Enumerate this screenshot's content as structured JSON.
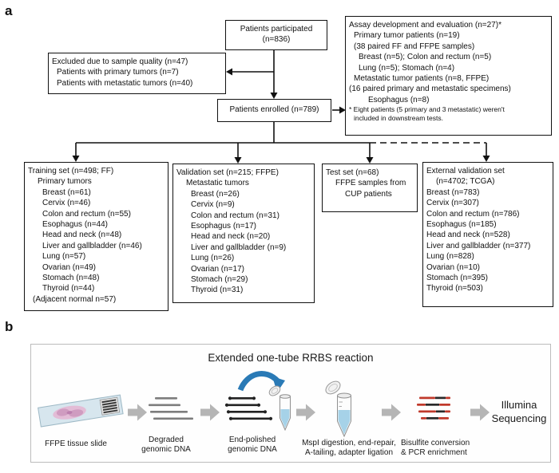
{
  "panel_a": {
    "label": "a",
    "participated": {
      "lines": [
        {
          "t": "Patients participated",
          "i": 0
        },
        {
          "t": "(n=836)",
          "i": 0
        }
      ]
    },
    "excluded": {
      "lines": [
        {
          "t": "Excluded due to sample quality (n=47)",
          "i": 0
        },
        {
          "t": "Patients with primary tumors (n=7)",
          "i": 1
        },
        {
          "t": "Patients with metastatic tumors  (n=40)",
          "i": 1
        }
      ]
    },
    "assay": {
      "lines": [
        {
          "t": "Assay development and evaluation (n=27)*",
          "i": 0
        },
        {
          "t": "Primary tumor patients (n=19)",
          "i": 1
        },
        {
          "t": "(38 paired FF and FFPE samples)",
          "i": 1
        },
        {
          "t": "Breast (n=5); Colon and rectum (n=5)",
          "i": 2
        },
        {
          "t": "Lung (n=5); Stomach (n=4)",
          "i": 2
        },
        {
          "t": "Metastatic tumor patients  (n=8, FFPE)",
          "i": 1
        },
        {
          "t": "(16 paired primary and metastatic specimens)",
          "i": 0
        },
        {
          "t": "Esophagus (n=8)",
          "i": 4
        },
        {
          "t": "* Eight patients (5 primary and 3 metastatic) weren't",
          "i": 0,
          "s": true
        },
        {
          "t": "included in downstream tests.",
          "i": 1,
          "s": true
        }
      ]
    },
    "enrolled": {
      "lines": [
        {
          "t": "Patients enrolled (n=789)",
          "i": 0
        }
      ]
    },
    "training": {
      "lines": [
        {
          "t": "Training set (n=498; FF)",
          "i": 0
        },
        {
          "t": "Primary tumors",
          "i": 2
        },
        {
          "t": "Breast (n=61)",
          "i": 3
        },
        {
          "t": "Cervix (n=46)",
          "i": 3
        },
        {
          "t": "Colon and rectum (n=55)",
          "i": 3
        },
        {
          "t": "Esophagus (n=44)",
          "i": 3
        },
        {
          "t": "Head and neck (n=48)",
          "i": 3
        },
        {
          "t": "Liver and gallbladder (n=46)",
          "i": 3
        },
        {
          "t": "Lung (n=57)",
          "i": 3
        },
        {
          "t": "Ovarian (n=49)",
          "i": 3
        },
        {
          "t": "Stomach (n=48)",
          "i": 3
        },
        {
          "t": "Thyroid (n=44)",
          "i": 3
        },
        {
          "t": "(Adjacent normal n=57)",
          "i": 1
        }
      ]
    },
    "validation": {
      "lines": [
        {
          "t": "Validation set (n=215; FFPE)",
          "i": 0
        },
        {
          "t": "Metastatic tumors",
          "i": 2
        },
        {
          "t": "Breast (n=26)",
          "i": 3
        },
        {
          "t": "Cervix (n=9)",
          "i": 3
        },
        {
          "t": "Colon and rectum (n=31)",
          "i": 3
        },
        {
          "t": "Esophagus (n=17)",
          "i": 3
        },
        {
          "t": "Head and neck (n=20)",
          "i": 3
        },
        {
          "t": "Liver and gallbladder (n=9)",
          "i": 3
        },
        {
          "t": "Lung (n=26)",
          "i": 3
        },
        {
          "t": "Ovarian (n=17)",
          "i": 3
        },
        {
          "t": "Stomach (n=29)",
          "i": 3
        },
        {
          "t": "Thyroid (n=31)",
          "i": 3
        }
      ]
    },
    "test": {
      "lines": [
        {
          "t": "Test set (n=68)",
          "i": 0
        },
        {
          "t": "FFPE samples from",
          "i": 2
        },
        {
          "t": "CUP patients",
          "i": 4
        }
      ]
    },
    "external": {
      "lines": [
        {
          "t": "External validation set",
          "i": 0
        },
        {
          "t": "(n=4702; TCGA)",
          "i": 2
        },
        {
          "t": "Breast (n=783)",
          "i": 0
        },
        {
          "t": "Cervix  (n=307)",
          "i": 0
        },
        {
          "t": "Colon and rectum  (n=786)",
          "i": 0
        },
        {
          "t": "Esophagus  (n=185)",
          "i": 0
        },
        {
          "t": "Head and neck  (n=528)",
          "i": 0
        },
        {
          "t": "Liver and gallbladder  (n=377)",
          "i": 0
        },
        {
          "t": "Lung  (n=828)",
          "i": 0
        },
        {
          "t": "Ovarian (n=10)",
          "i": 0
        },
        {
          "t": "Stomach (n=395)",
          "i": 0
        },
        {
          "t": "Thyroid  (n=503)",
          "i": 0
        }
      ]
    }
  },
  "panel_b": {
    "label": "b",
    "title": "Extended one-tube RRBS reaction",
    "step_labels": {
      "ffpe": {
        "lines": [
          {
            "t": "FFPE tissue slide"
          }
        ]
      },
      "degraded": {
        "lines": [
          {
            "t": "Degraded"
          },
          {
            "t": "genomic DNA"
          }
        ]
      },
      "end_polished": {
        "lines": [
          {
            "t": "End-polished"
          },
          {
            "t": "genomic DNA"
          }
        ]
      },
      "mspi": {
        "lines": [
          {
            "t": "MspI digestion, end-repair,"
          },
          {
            "t": "A-tailing, adapter ligation"
          }
        ]
      },
      "bisulfite": {
        "lines": [
          {
            "t": "Bisulfite conversion"
          },
          {
            "t": "& PCR enrichment"
          }
        ]
      },
      "illumina": {
        "lines": [
          {
            "t": "Illumina"
          },
          {
            "t": "Sequencing"
          }
        ]
      }
    },
    "colors": {
      "flow_line": "#111111",
      "arrow_gray": "#b5b5b5",
      "arrow_blue": "#2a7ab6",
      "dna_gray": "#7d7d7d",
      "dna_black": "#222222",
      "dna_red": "#c0392b",
      "tube_liquid": "#a6d2e8",
      "slide_glass": "#d7e6ee",
      "tissue_pink": "#e3bcd6",
      "panel_border": "#bcbcbc"
    }
  }
}
